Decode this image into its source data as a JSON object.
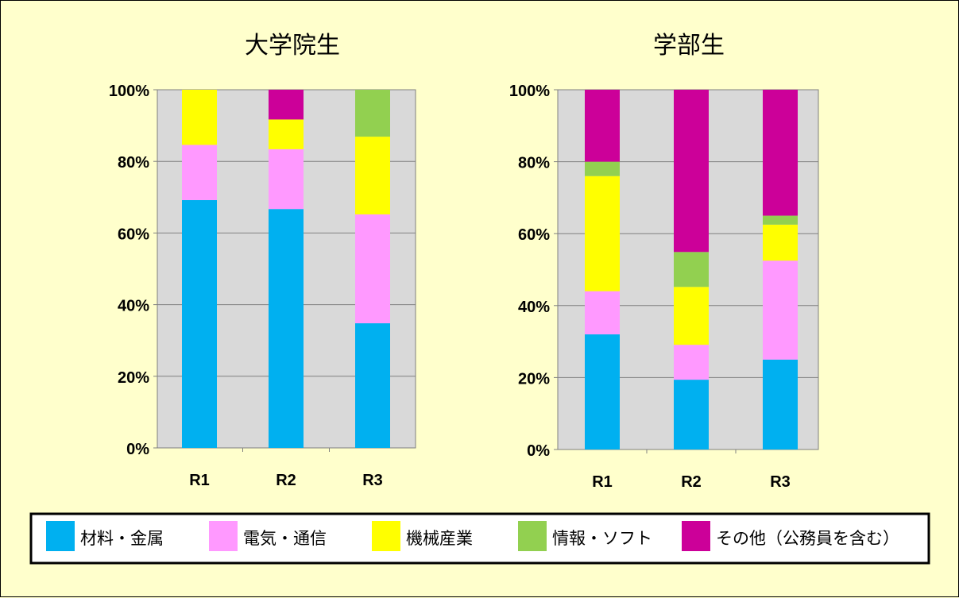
{
  "colors": {
    "background": "#ffffcc",
    "plot_area": "#d9d9d9",
    "series": [
      "#00b0f0",
      "#ff99ff",
      "#ffff00",
      "#92d050",
      "#cc0099"
    ]
  },
  "legend": {
    "position": "bottom",
    "items": [
      "材料・金属",
      "電気・通信",
      "機械産業",
      "情報・ソフト",
      "その他（公務員を含む）"
    ]
  },
  "chart_data": [
    {
      "type": "bar",
      "stacked": true,
      "title": "大学院生",
      "categories": [
        "R1",
        "R2",
        "R3"
      ],
      "yticks": [
        "0%",
        "20%",
        "40%",
        "60%",
        "80%",
        "100%"
      ],
      "ylim": [
        0,
        100
      ],
      "grid": true,
      "series": [
        {
          "name": "材料・金属",
          "values": [
            69.2,
            66.7,
            34.8
          ]
        },
        {
          "name": "電気・通信",
          "values": [
            15.4,
            16.7,
            30.4
          ]
        },
        {
          "name": "機械産業",
          "values": [
            15.4,
            8.3,
            21.7
          ]
        },
        {
          "name": "情報・ソフト",
          "values": [
            0,
            0,
            13.1
          ]
        },
        {
          "name": "その他（公務員を含む）",
          "values": [
            0,
            8.3,
            0
          ]
        }
      ]
    },
    {
      "type": "bar",
      "stacked": true,
      "title": "学部生",
      "categories": [
        "R1",
        "R2",
        "R3"
      ],
      "yticks": [
        "0%",
        "20%",
        "40%",
        "60%",
        "80%",
        "100%"
      ],
      "ylim": [
        0,
        100
      ],
      "grid": true,
      "series": [
        {
          "name": "材料・金属",
          "values": [
            32.0,
            19.4,
            25.0
          ]
        },
        {
          "name": "電気・通信",
          "values": [
            12.0,
            9.7,
            27.5
          ]
        },
        {
          "name": "機械産業",
          "values": [
            32.0,
            16.1,
            10.0
          ]
        },
        {
          "name": "情報・ソフト",
          "values": [
            4.0,
            9.7,
            2.5
          ]
        },
        {
          "name": "その他（公務員を含む）",
          "values": [
            20.0,
            45.1,
            35.0
          ]
        }
      ]
    }
  ]
}
